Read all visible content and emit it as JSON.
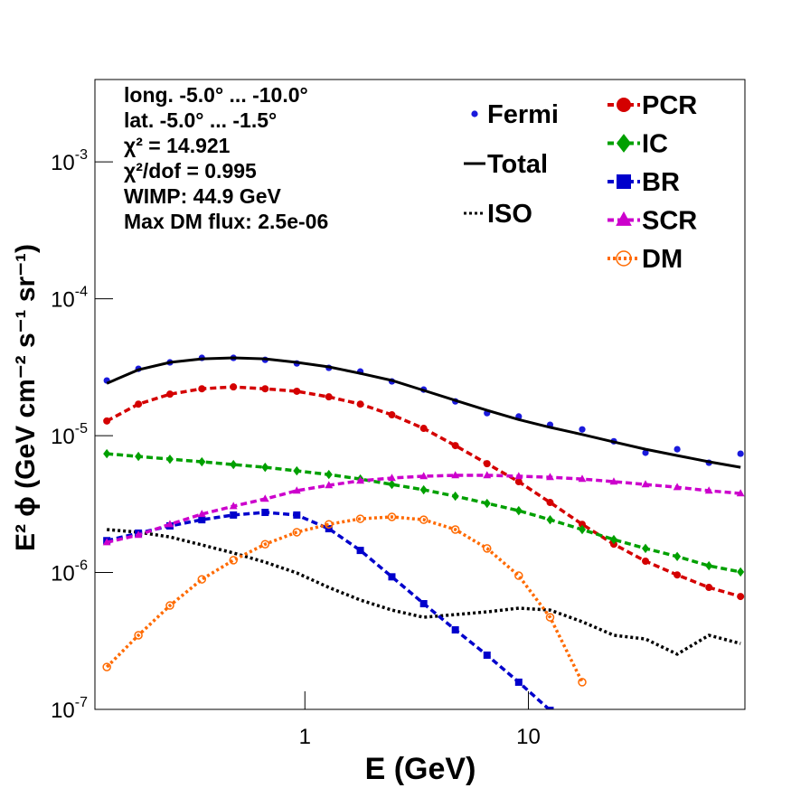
{
  "chart_data": {
    "type": "line",
    "log_x": true,
    "log_y": true,
    "xlabel": "E (GeV)",
    "ylabel": "E² ϕ (GeV cm⁻² s⁻¹ sr⁻¹)",
    "xlim": [
      0.115,
      93
    ],
    "ylim": [
      1e-07,
      0.004
    ],
    "xticks": [
      1,
      10
    ],
    "yticks": [
      {
        "value": 1e-07,
        "label": "10",
        "exponent": "-7"
      },
      {
        "value": 1e-06,
        "label": "10",
        "exponent": "-6"
      },
      {
        "value": 1e-05,
        "label": "10",
        "exponent": "-5"
      },
      {
        "value": 0.0001,
        "label": "10",
        "exponent": "-4"
      },
      {
        "value": 0.001,
        "label": "10",
        "exponent": "-3"
      }
    ],
    "annotations": [
      "long. -5.0° ... -10.0°",
      "lat. -5.0° ... -1.5°",
      "χ² = 14.921",
      "χ²/dof = 0.995",
      "WIMP: 44.9 GeV",
      "Max DM flux: 2.5e-06"
    ],
    "x": [
      0.13,
      0.18,
      0.249,
      0.346,
      0.479,
      0.664,
      0.92,
      1.28,
      1.77,
      2.45,
      3.4,
      4.71,
      6.53,
      9.05,
      12.5,
      17.4,
      24.1,
      33.4,
      46.3,
      64.2,
      88.9
    ],
    "series": [
      {
        "name": "Fermi",
        "color": "#1a1adc",
        "marker": "dot",
        "line": "none",
        "values": [
          2.53e-05,
          3.08e-05,
          3.43e-05,
          3.7e-05,
          3.7e-05,
          3.58e-05,
          3.37e-05,
          3.13e-05,
          2.94e-05,
          2.49e-05,
          2.17e-05,
          1.78e-05,
          1.46e-05,
          1.38e-05,
          1.2e-05,
          1.11e-05,
          9.1e-06,
          7.5e-06,
          7.96e-06,
          6.34e-06,
          7.38e-06
        ]
      },
      {
        "name": "Total",
        "color": "#000000",
        "marker": "none",
        "line": "solid",
        "values": [
          2.41e-05,
          3.03e-05,
          3.43e-05,
          3.64e-05,
          3.7e-05,
          3.64e-05,
          3.43e-05,
          3.18e-05,
          2.85e-05,
          2.53e-05,
          2.14e-05,
          1.81e-05,
          1.53e-05,
          1.31e-05,
          1.15e-05,
          1.02e-05,
          8.99e-06,
          7.96e-06,
          7.16e-06,
          6.44e-06,
          5.87e-06
        ]
      },
      {
        "name": "ISO",
        "color": "#000000",
        "marker": "none",
        "line": "dotted",
        "values": [
          2.06e-06,
          1.97e-06,
          1.82e-06,
          1.59e-06,
          1.39e-06,
          1.19e-06,
          9.93e-07,
          7.78e-07,
          6.29e-07,
          5.32e-07,
          4.71e-07,
          4.93e-07,
          5.16e-07,
          5.49e-07,
          5.32e-07,
          4.37e-07,
          3.48e-07,
          3.27e-07,
          2.53e-07,
          3.48e-07,
          3.03e-07
        ]
      },
      {
        "name": "PCR",
        "color": "#d40000",
        "marker": "circle",
        "line": "dashed",
        "values": [
          1.28e-05,
          1.7e-05,
          2.01e-05,
          2.2e-05,
          2.27e-05,
          2.2e-05,
          2.11e-05,
          1.92e-05,
          1.7e-05,
          1.42e-05,
          1.13e-05,
          8.46e-06,
          6.24e-06,
          4.61e-06,
          3.25e-06,
          2.25e-06,
          1.61e-06,
          1.21e-06,
          9.6e-07,
          7.78e-07,
          6.68e-07
        ]
      },
      {
        "name": "IC",
        "color": "#00a000",
        "marker": "diamond",
        "line": "dashed",
        "values": [
          7.38e-06,
          7.05e-06,
          6.73e-06,
          6.44e-06,
          6.15e-06,
          5.87e-06,
          5.53e-06,
          5.2e-06,
          4.82e-06,
          4.4e-06,
          4.02e-06,
          3.61e-06,
          3.2e-06,
          2.83e-06,
          2.43e-06,
          2.06e-06,
          1.74e-06,
          1.5e-06,
          1.31e-06,
          1.12e-06,
          1.01e-06
        ]
      },
      {
        "name": "BR",
        "color": "#0000cc",
        "marker": "square",
        "line": "dashed",
        "values": [
          1.71e-06,
          1.94e-06,
          2.19e-06,
          2.43e-06,
          2.63e-06,
          2.75e-06,
          2.63e-06,
          2.09e-06,
          1.45e-06,
          9.3e-07,
          5.92e-07,
          3.81e-07,
          2.49e-07,
          1.58e-07,
          9.85e-08,
          null,
          null,
          null,
          null,
          null,
          null
        ]
      },
      {
        "name": "SCR",
        "color": "#cc00cc",
        "marker": "triangle",
        "line": "dashed",
        "values": [
          1.66e-06,
          1.88e-06,
          2.25e-06,
          2.67e-06,
          3.05e-06,
          3.45e-06,
          3.96e-06,
          4.34e-06,
          4.68e-06,
          4.9e-06,
          5.05e-06,
          5.13e-06,
          5.13e-06,
          5.05e-06,
          4.97e-06,
          4.82e-06,
          4.61e-06,
          4.4e-06,
          4.2e-06,
          3.96e-06,
          3.78e-06
        ]
      },
      {
        "name": "DM",
        "color": "#ff6a00",
        "marker": "open-circle",
        "line": "dotted",
        "values": [
          2.04e-07,
          3.48e-07,
          5.74e-07,
          8.92e-07,
          1.23e-06,
          1.61e-06,
          1.97e-06,
          2.25e-06,
          2.47e-06,
          2.55e-06,
          2.43e-06,
          2.06e-06,
          1.5e-06,
          9.48e-07,
          4.71e-07,
          1.58e-07,
          null,
          null,
          null,
          null,
          null
        ]
      }
    ]
  }
}
